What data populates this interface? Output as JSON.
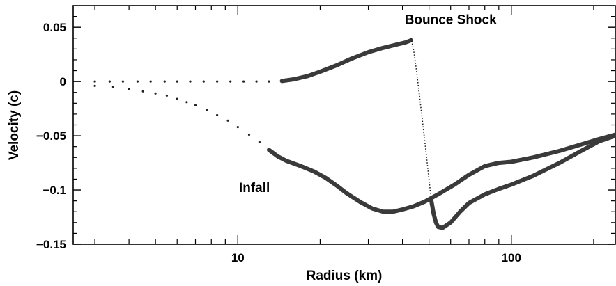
{
  "chart_data": {
    "type": "scatter",
    "title": "",
    "xlabel": "Radius (km)",
    "ylabel": "Velocity (c)",
    "xscale": "log",
    "xlim": [
      2.5,
      240
    ],
    "ylim": [
      -0.15,
      0.07
    ],
    "x_ticks": [
      10,
      100
    ],
    "x_tick_labels": [
      "10",
      "100"
    ],
    "y_ticks": [
      0.05,
      0,
      -0.05,
      -0.1,
      -0.15
    ],
    "y_tick_labels": [
      "0.05",
      "0",
      "−0.05",
      "−0.1",
      "−0.15"
    ],
    "grid": false,
    "annotations": [
      {
        "text": "Bounce Shock",
        "x": 60,
        "y": 0.053
      },
      {
        "text": "Infall",
        "x": 11.5,
        "y": -0.102
      }
    ],
    "series": [
      {
        "x": [
          3,
          3.4,
          3.8,
          4.3,
          4.8,
          5.4,
          6,
          6.7,
          7.5,
          8.4,
          9.4,
          10.5,
          11.7,
          13,
          14.5,
          16,
          18,
          20,
          23,
          26,
          30,
          34,
          38,
          41,
          43
        ],
        "y": [
          0,
          0,
          0,
          0,
          0,
          0,
          0,
          0,
          0,
          0,
          0,
          0,
          0,
          0,
          0.0005,
          0.002,
          0.005,
          0.009,
          0.015,
          0.021,
          0.027,
          0.031,
          0.034,
          0.036,
          0.038
        ]
      },
      {
        "x": [
          3,
          3.5,
          4,
          4.5,
          5,
          5.5,
          6,
          6.5,
          7,
          7.7,
          8.4,
          9.2,
          10,
          11,
          12,
          13,
          14,
          15,
          17,
          19,
          21,
          23,
          25,
          28,
          31,
          34,
          37,
          40,
          44,
          48,
          54,
          62,
          70,
          80,
          90,
          100,
          120,
          150,
          180,
          210,
          240
        ],
        "y": [
          -0.004,
          -0.005,
          -0.007,
          -0.009,
          -0.011,
          -0.013,
          -0.016,
          -0.019,
          -0.022,
          -0.026,
          -0.031,
          -0.036,
          -0.042,
          -0.049,
          -0.056,
          -0.063,
          -0.069,
          -0.073,
          -0.078,
          -0.083,
          -0.089,
          -0.096,
          -0.103,
          -0.111,
          -0.117,
          -0.12,
          -0.12,
          -0.118,
          -0.115,
          -0.111,
          -0.104,
          -0.095,
          -0.086,
          -0.078,
          -0.075,
          -0.074,
          -0.07,
          -0.064,
          -0.058,
          -0.053,
          -0.049
        ]
      },
      {
        "x": [
          43,
          44,
          45,
          46,
          47,
          48,
          49,
          50,
          51,
          52,
          53,
          54,
          56,
          60,
          65,
          70,
          80,
          90,
          100,
          120,
          150,
          180,
          210,
          240
        ],
        "y": [
          0.04,
          0.028,
          0.01,
          -0.01,
          -0.03,
          -0.05,
          -0.07,
          -0.09,
          -0.11,
          -0.122,
          -0.13,
          -0.134,
          -0.135,
          -0.13,
          -0.12,
          -0.112,
          -0.104,
          -0.099,
          -0.095,
          -0.087,
          -0.075,
          -0.064,
          -0.055,
          -0.05
        ]
      }
    ]
  }
}
